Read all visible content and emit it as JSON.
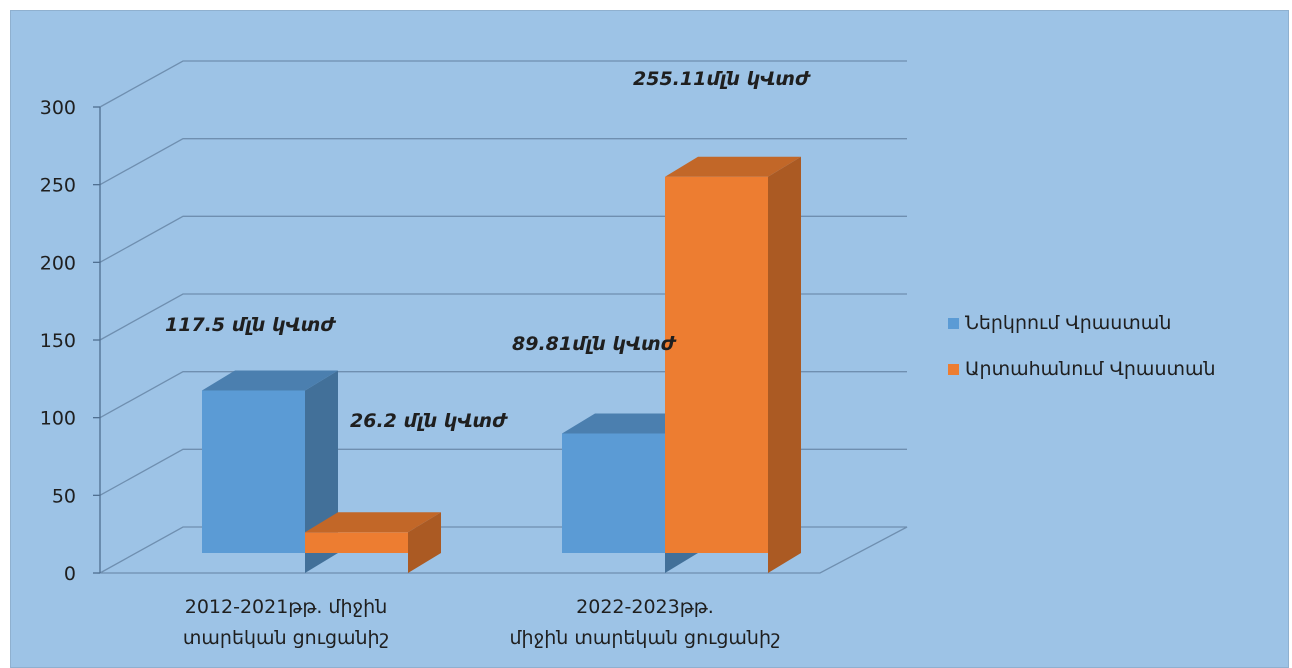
{
  "chart_data": {
    "type": "bar",
    "three_d": true,
    "categories": [
      [
        "2012-2021թթ. միջին",
        "տարեկան ցուցանիշ"
      ],
      [
        "2022-2023թթ.",
        "միջին տարեկան ցուցանիշ"
      ]
    ],
    "series": [
      {
        "name": "Ներկրում Վրաստան",
        "color": "#5b9bd5",
        "values": [
          117.5,
          89.81
        ],
        "data_labels": [
          "117.5 մլն կՎտժ",
          "89.81մլն կՎտժ"
        ]
      },
      {
        "name": "Արտահանում Վրաստան",
        "color": "#ed7d31",
        "values": [
          26.2,
          255.11
        ],
        "data_labels": [
          "26.2 մլն կՎտժ",
          "255.11մլն կՎտժ"
        ]
      }
    ],
    "y_ticks": [
      "0",
      "50",
      "100",
      "150",
      "200",
      "250",
      "300"
    ],
    "ylim": [
      0,
      300
    ],
    "grid": true,
    "legend_position": "right",
    "background": "#9dc3e6"
  }
}
